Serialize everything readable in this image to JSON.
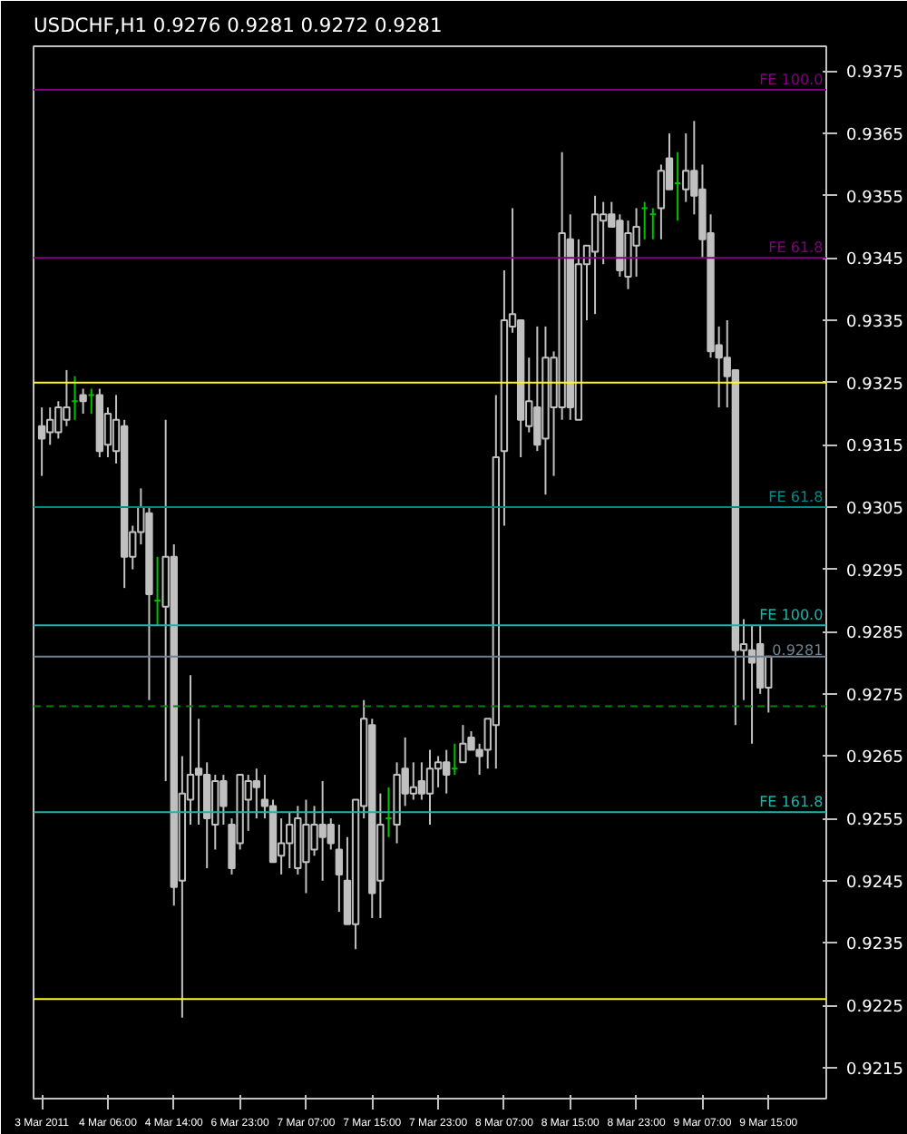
{
  "chart_data": {
    "type": "candlestick",
    "title": "USDCHF,H1  0.9276 0.9281 0.9272 0.9281",
    "categories": [
      "3 Mar 2011",
      null,
      null,
      null,
      null,
      null,
      null,
      null,
      "4 Mar 06:00",
      null,
      null,
      null,
      null,
      null,
      null,
      null,
      "4 Mar 14:00",
      null,
      null,
      null,
      null,
      null,
      null,
      null,
      "6 Mar 23:00",
      null,
      null,
      null,
      null,
      null,
      null,
      null,
      "7 Mar 07:00",
      null,
      null,
      null,
      null,
      null,
      null,
      null,
      "7 Mar 15:00",
      null,
      null,
      null,
      null,
      null,
      null,
      null,
      "7 Mar 23:00",
      null,
      null,
      null,
      null,
      null,
      null,
      null,
      "8 Mar 07:00",
      null,
      null,
      null,
      null,
      null,
      null,
      null,
      "8 Mar 15:00",
      null,
      null,
      null,
      null,
      null,
      null,
      null,
      "8 Mar 23:00",
      null,
      null,
      null,
      null,
      null,
      null,
      null,
      "9 Mar 07:00",
      null,
      null,
      null,
      null,
      null,
      null,
      null,
      "9 Mar 15:00"
    ],
    "ohlc": [
      [
        0.9318,
        0.9321,
        0.931,
        0.9316
      ],
      [
        0.9317,
        0.9321,
        0.9315,
        0.9319
      ],
      [
        0.9317,
        0.9322,
        0.9316,
        0.9321
      ],
      [
        0.9319,
        0.9327,
        0.9318,
        0.9321
      ],
      [
        0.9322,
        0.9326,
        0.9319,
        0.9322
      ],
      [
        0.9323,
        0.9324,
        0.932,
        0.9322
      ],
      [
        0.9323,
        0.9324,
        0.932,
        0.9323
      ],
      [
        0.9323,
        0.9324,
        0.9313,
        0.9314
      ],
      [
        0.9315,
        0.9321,
        0.9313,
        0.932
      ],
      [
        0.9314,
        0.9323,
        0.9312,
        0.9319
      ],
      [
        0.9318,
        0.9319,
        0.9292,
        0.9297
      ],
      [
        0.9297,
        0.9302,
        0.9295,
        0.9301
      ],
      [
        0.9301,
        0.9308,
        0.9299,
        0.9305
      ],
      [
        0.9304,
        0.9305,
        0.9274,
        0.9291
      ],
      [
        0.929,
        0.9297,
        0.9286,
        0.929
      ],
      [
        0.9289,
        0.9319,
        0.9261,
        0.9297
      ],
      [
        0.9297,
        0.9299,
        0.9241,
        0.9244
      ],
      [
        0.9245,
        0.9265,
        0.9223,
        0.9259
      ],
      [
        0.9258,
        0.9278,
        0.9254,
        0.9262
      ],
      [
        0.9263,
        0.9271,
        0.9254,
        0.9262
      ],
      [
        0.9262,
        0.9264,
        0.9247,
        0.9255
      ],
      [
        0.9254,
        0.9262,
        0.925,
        0.9261
      ],
      [
        0.9261,
        0.9262,
        0.9254,
        0.9257
      ],
      [
        0.9254,
        0.9255,
        0.9246,
        0.9247
      ],
      [
        0.9251,
        0.9262,
        0.925,
        0.9262
      ],
      [
        0.9258,
        0.9262,
        0.9253,
        0.9261
      ],
      [
        0.9261,
        0.9263,
        0.9255,
        0.926
      ],
      [
        0.9258,
        0.9262,
        0.9255,
        0.9257
      ],
      [
        0.9257,
        0.9258,
        0.9248,
        0.9248
      ],
      [
        0.9249,
        0.9255,
        0.9246,
        0.9251
      ],
      [
        0.9251,
        0.9256,
        0.9247,
        0.9254
      ],
      [
        0.9247,
        0.9257,
        0.9246,
        0.9255
      ],
      [
        0.9248,
        0.9258,
        0.9243,
        0.9254
      ],
      [
        0.925,
        0.9257,
        0.9249,
        0.9254
      ],
      [
        0.9254,
        0.9261,
        0.9245,
        0.9252
      ],
      [
        0.9254,
        0.9255,
        0.925,
        0.9251
      ],
      [
        0.925,
        0.9254,
        0.924,
        0.9246
      ],
      [
        0.9245,
        0.9252,
        0.9238,
        0.9238
      ],
      [
        0.9238,
        0.9258,
        0.9234,
        0.9258
      ],
      [
        0.9257,
        0.9274,
        0.9255,
        0.9271
      ],
      [
        0.927,
        0.9271,
        0.9239,
        0.9243
      ],
      [
        0.9245,
        0.9259,
        0.9239,
        0.9254
      ],
      [
        0.9255,
        0.926,
        0.9252,
        0.9255
      ],
      [
        0.9254,
        0.9264,
        0.9251,
        0.9262
      ],
      [
        0.9263,
        0.9268,
        0.9257,
        0.9259
      ],
      [
        0.9259,
        0.9264,
        0.9258,
        0.926
      ],
      [
        0.9261,
        0.9264,
        0.9258,
        0.9259
      ],
      [
        0.9259,
        0.9266,
        0.9254,
        0.9263
      ],
      [
        0.9263,
        0.9265,
        0.926,
        0.9264
      ],
      [
        0.9264,
        0.9266,
        0.9259,
        0.9262
      ],
      [
        0.9263,
        0.9267,
        0.9262,
        0.9263
      ],
      [
        0.9264,
        0.927,
        0.9264,
        0.9267
      ],
      [
        0.9268,
        0.9269,
        0.9266,
        0.9266
      ],
      [
        0.9266,
        0.9267,
        0.9262,
        0.9265
      ],
      [
        0.9266,
        0.9271,
        0.9263,
        0.9271
      ],
      [
        0.927,
        0.9323,
        0.9263,
        0.9313
      ],
      [
        0.9314,
        0.9343,
        0.9302,
        0.9335
      ],
      [
        0.9334,
        0.9353,
        0.9333,
        0.9336
      ],
      [
        0.9335,
        0.9335,
        0.9313,
        0.9319
      ],
      [
        0.9318,
        0.9329,
        0.9317,
        0.9322
      ],
      [
        0.9321,
        0.9334,
        0.9314,
        0.9315
      ],
      [
        0.9316,
        0.9334,
        0.9307,
        0.9329
      ],
      [
        0.9321,
        0.933,
        0.931,
        0.9329
      ],
      [
        0.9321,
        0.9362,
        0.9319,
        0.9349
      ],
      [
        0.9348,
        0.9352,
        0.9319,
        0.9321
      ],
      [
        0.9319,
        0.9348,
        0.9319,
        0.9344
      ],
      [
        0.9344,
        0.9347,
        0.9335,
        0.9347
      ],
      [
        0.9346,
        0.9355,
        0.9336,
        0.9352
      ],
      [
        0.9351,
        0.9354,
        0.9344,
        0.9352
      ],
      [
        0.9352,
        0.9354,
        0.935,
        0.935
      ],
      [
        0.9351,
        0.9352,
        0.9342,
        0.9343
      ],
      [
        0.9342,
        0.9351,
        0.934,
        0.9349
      ],
      [
        0.9347,
        0.9353,
        0.9342,
        0.935
      ],
      [
        0.9353,
        0.9354,
        0.9348,
        0.9353
      ],
      [
        0.9352,
        0.9353,
        0.9348,
        0.9352
      ],
      [
        0.9353,
        0.936,
        0.9348,
        0.9359
      ],
      [
        0.9361,
        0.9365,
        0.9356,
        0.9356
      ],
      [
        0.9357,
        0.9362,
        0.9351,
        0.9357
      ],
      [
        0.9356,
        0.9365,
        0.9354,
        0.9359
      ],
      [
        0.9359,
        0.9367,
        0.9352,
        0.9355
      ],
      [
        0.9356,
        0.936,
        0.9345,
        0.9348
      ],
      [
        0.9349,
        0.9352,
        0.9329,
        0.933
      ],
      [
        0.9331,
        0.9334,
        0.9321,
        0.9329
      ],
      [
        0.9329,
        0.9335,
        0.9321,
        0.9326
      ],
      [
        0.9327,
        0.9327,
        0.927,
        0.9282
      ],
      [
        0.9282,
        0.9287,
        0.9274,
        0.9283
      ],
      [
        0.9282,
        0.9286,
        0.9267,
        0.928
      ],
      [
        0.9283,
        0.9286,
        0.9275,
        0.9276
      ],
      [
        0.9276,
        0.9281,
        0.9272,
        0.9281
      ]
    ],
    "colors": [
      "#c0c0c0",
      "#c0c0c0",
      "#c0c0c0",
      "#c0c0c0",
      "#00c000",
      "#c0c0c0",
      "#00c000",
      "#c0c0c0",
      "#c0c0c0",
      "#c0c0c0",
      "#c0c0c0",
      "#c0c0c0",
      "#c0c0c0",
      "#c0c0c0",
      "#00c000",
      "#c0c0c0",
      "#c0c0c0",
      "#c0c0c0",
      "#c0c0c0",
      "#c0c0c0",
      "#c0c0c0",
      "#c0c0c0",
      "#c0c0c0",
      "#c0c0c0",
      "#c0c0c0",
      "#c0c0c0",
      "#c0c0c0",
      "#c0c0c0",
      "#c0c0c0",
      "#c0c0c0",
      "#c0c0c0",
      "#c0c0c0",
      "#c0c0c0",
      "#c0c0c0",
      "#c0c0c0",
      "#c0c0c0",
      "#c0c0c0",
      "#c0c0c0",
      "#c0c0c0",
      "#c0c0c0",
      "#c0c0c0",
      "#c0c0c0",
      "#00c000",
      "#c0c0c0",
      "#c0c0c0",
      "#c0c0c0",
      "#c0c0c0",
      "#c0c0c0",
      "#c0c0c0",
      "#c0c0c0",
      "#00c000",
      "#c0c0c0",
      "#c0c0c0",
      "#c0c0c0",
      "#c0c0c0",
      "#c0c0c0",
      "#c0c0c0",
      "#c0c0c0",
      "#c0c0c0",
      "#c0c0c0",
      "#c0c0c0",
      "#c0c0c0",
      "#c0c0c0",
      "#c0c0c0",
      "#c0c0c0",
      "#c0c0c0",
      "#c0c0c0",
      "#c0c0c0",
      "#c0c0c0",
      "#c0c0c0",
      "#c0c0c0",
      "#c0c0c0",
      "#c0c0c0",
      "#00c000",
      "#00c000",
      "#c0c0c0",
      "#c0c0c0",
      "#00c000",
      "#c0c0c0",
      "#c0c0c0",
      "#c0c0c0",
      "#c0c0c0",
      "#c0c0c0",
      "#c0c0c0",
      "#c0c0c0",
      "#c0c0c0",
      "#c0c0c0",
      "#c0c0c0",
      "#c0c0c0"
    ],
    "ylim": [
      0.921,
      0.9379
    ],
    "yticks": [
      0.9215,
      0.9225,
      0.9235,
      0.9245,
      0.9255,
      0.9265,
      0.9275,
      0.9285,
      0.9295,
      0.9305,
      0.9315,
      0.9325,
      0.9335,
      0.9345,
      0.9355,
      0.9365,
      0.9375
    ],
    "ref_lines": [
      {
        "axis": "y",
        "value": 0.9325,
        "color": "#ffff00"
      },
      {
        "axis": "y",
        "value": 0.9226,
        "color": "#ffff00"
      },
      {
        "axis": "y",
        "value": 0.9372,
        "label": "FE 100.0",
        "color": "#800080"
      },
      {
        "axis": "y",
        "value": 0.9345,
        "label": "FE 61.8",
        "color": "#800080"
      },
      {
        "axis": "y",
        "value": 0.9305,
        "label": "FE 61.8",
        "color": "#008b8b"
      },
      {
        "axis": "y",
        "value": 0.9286,
        "label": "FE 100.0",
        "color": "#20b2aa"
      },
      {
        "axis": "y",
        "value": 0.9256,
        "label": "FE 161.8",
        "color": "#20b2aa"
      },
      {
        "axis": "y",
        "value": 0.9281,
        "label": "0.9281",
        "color": "#708090"
      },
      {
        "axis": "y",
        "value": 0.9273,
        "color": "#008000",
        "line_style": "dashed"
      }
    ],
    "grid": false
  }
}
